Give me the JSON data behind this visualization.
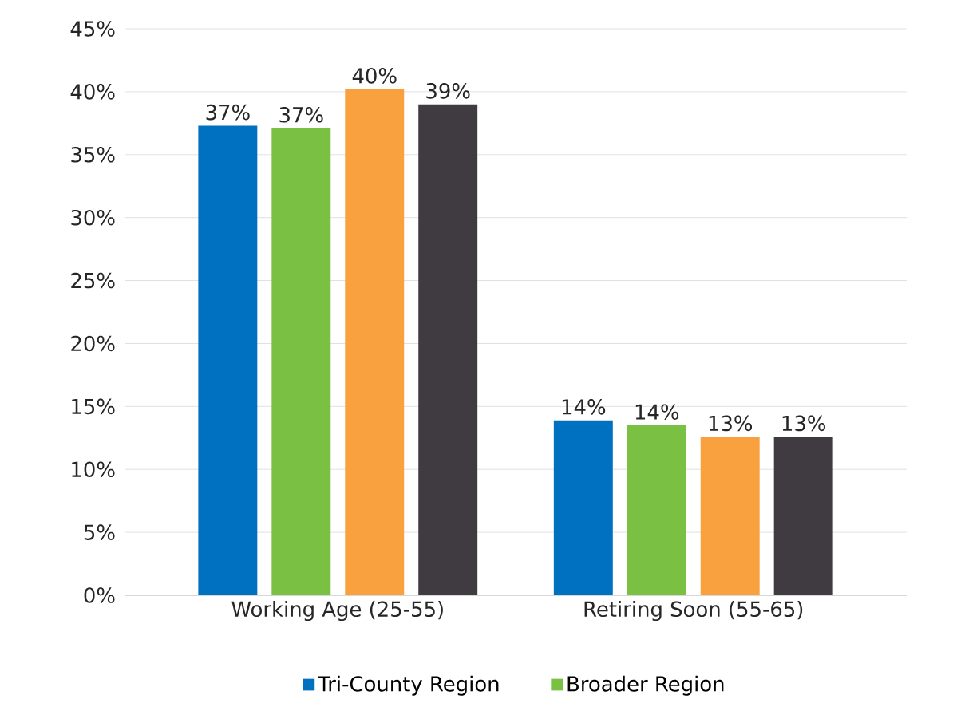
{
  "chart_data": {
    "type": "bar",
    "categories": [
      "Working Age (25-55)",
      "Retiring Soon (55-65)"
    ],
    "series": [
      {
        "name": "Tri-County Region",
        "color": "#0070c0",
        "values": [
          37.3,
          13.9
        ],
        "value_labels": [
          "37%",
          "14%"
        ]
      },
      {
        "name": "Broader Region",
        "color": "#7ac143",
        "values": [
          37.1,
          13.5
        ],
        "value_labels": [
          "37%",
          "14%"
        ]
      },
      {
        "color": "#f9a03f",
        "values": [
          40.2,
          12.6
        ],
        "value_labels": [
          "40%",
          "13%"
        ]
      },
      {
        "color": "#403a41",
        "values": [
          39.0,
          12.6
        ],
        "value_labels": [
          "39%",
          "13%"
        ]
      }
    ],
    "ylim": [
      0,
      45
    ],
    "yticks": [
      {
        "value": 0,
        "label": "0%"
      },
      {
        "value": 5,
        "label": "5%"
      },
      {
        "value": 10,
        "label": "10%"
      },
      {
        "value": 15,
        "label": "15%"
      },
      {
        "value": 20,
        "label": "20%"
      },
      {
        "value": 25,
        "label": "25%"
      },
      {
        "value": 30,
        "label": "30%"
      },
      {
        "value": 35,
        "label": "35%"
      },
      {
        "value": 40,
        "label": "40%"
      },
      {
        "value": 45,
        "label": "45%"
      }
    ],
    "grid": "y",
    "legend": "bottom"
  }
}
